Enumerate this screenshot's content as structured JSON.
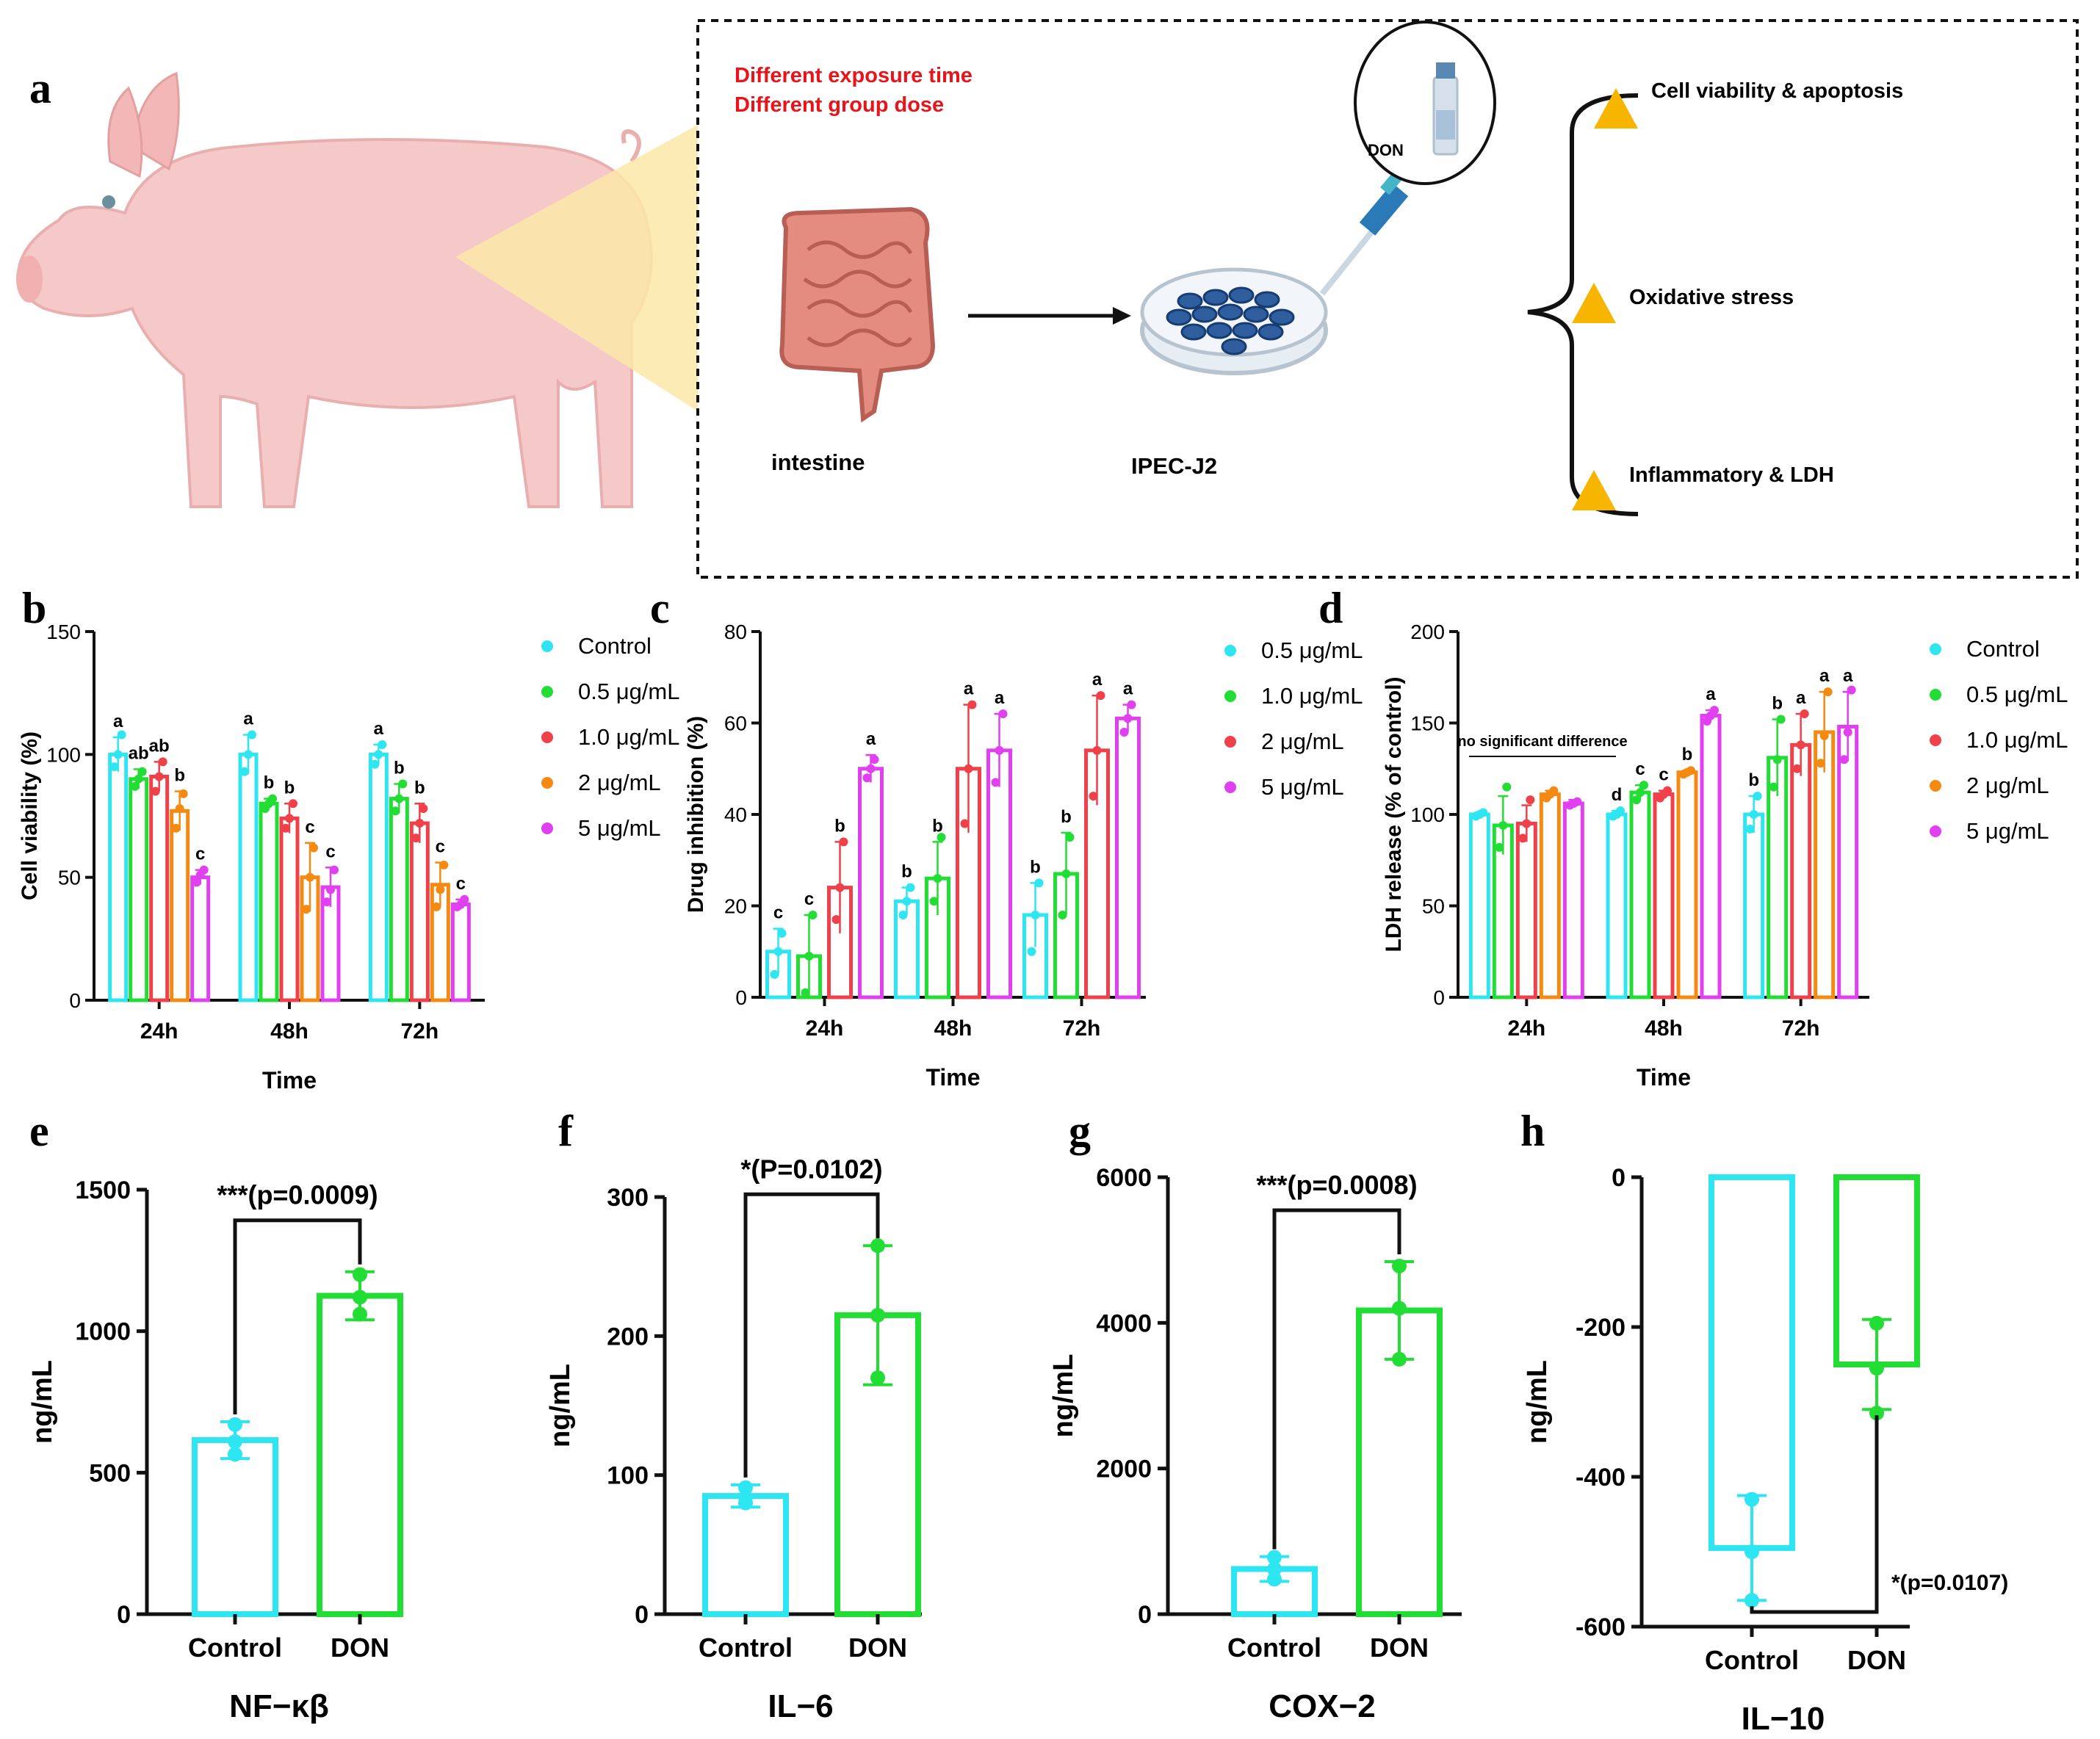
{
  "colors": {
    "control": "#2EE6F2",
    "d05": "#22DD33",
    "d10": "#F0404A",
    "d2": "#F58A12",
    "d5": "#E040F0",
    "don": "#22DD33",
    "red_text": "#E8141A",
    "triangle": "#F7B500",
    "pig": "#F6C9C9"
  },
  "panels": {
    "a": "a",
    "b": "b",
    "c": "c",
    "d": "d",
    "e": "e",
    "f": "f",
    "g": "g",
    "h": "h"
  },
  "schematic": {
    "note_line1": "Different exposure time",
    "note_line2": "Different group dose",
    "vial_label": "DON",
    "intestine_label": "intestine",
    "cell_label": "IPEC-J2",
    "outcomes": [
      "Cell viability & apoptosis",
      "Oxidative stress",
      "Inflammatory & LDH"
    ]
  },
  "chart_data": [
    {
      "id": "b",
      "type": "bar",
      "title": "",
      "xlabel": "Time",
      "ylabel": "Cell viability (%)",
      "categories": [
        "24h",
        "48h",
        "72h"
      ],
      "ylim": [
        0,
        150
      ],
      "yticks": [
        0,
        50,
        100,
        150
      ],
      "series": [
        {
          "name": "Control",
          "color": "control",
          "values": [
            100,
            100,
            100
          ],
          "err": [
            7,
            8,
            4
          ],
          "points": [
            [
              95,
              100,
              108
            ],
            [
              93,
              100,
              108
            ],
            [
              96,
              100,
              104
            ]
          ],
          "letters": [
            "a",
            "a",
            "a"
          ]
        },
        {
          "name": "0.5 μg/mL",
          "color": "d05",
          "values": [
            90,
            80,
            82
          ],
          "err": [
            4,
            2,
            6
          ],
          "points": [
            [
              87,
              90,
              93
            ],
            [
              78,
              80,
              82
            ],
            [
              77,
              82,
              88
            ]
          ],
          "letters": [
            "ab",
            "b",
            "b"
          ]
        },
        {
          "name": "1.0 μg/mL",
          "color": "d10",
          "values": [
            91,
            74,
            72
          ],
          "err": [
            6,
            6,
            8
          ],
          "points": [
            [
              85,
              91,
              97
            ],
            [
              70,
              74,
              80
            ],
            [
              66,
              72,
              78
            ]
          ],
          "letters": [
            "ab",
            "b",
            "b"
          ]
        },
        {
          "name": "2 μg/mL",
          "color": "d2",
          "values": [
            77,
            50,
            47
          ],
          "err": [
            8,
            14,
            9
          ],
          "points": [
            [
              70,
              78,
              84
            ],
            [
              37,
              50,
              62
            ],
            [
              38,
              45,
              55
            ]
          ],
          "letters": [
            "b",
            "c",
            "c"
          ]
        },
        {
          "name": "5 μg/mL",
          "color": "d5",
          "values": [
            50,
            46,
            39
          ],
          "err": [
            3,
            8,
            2
          ],
          "points": [
            [
              48,
              51,
              53
            ],
            [
              40,
              45,
              53
            ],
            [
              38,
              39,
              41
            ]
          ],
          "letters": [
            "c",
            "c",
            "c"
          ]
        }
      ]
    },
    {
      "id": "c",
      "type": "bar",
      "title": "",
      "xlabel": "Time",
      "ylabel": "Drug inhibition (%)",
      "categories": [
        "24h",
        "48h",
        "72h"
      ],
      "ylim": [
        0,
        80
      ],
      "yticks": [
        0,
        20,
        40,
        60,
        80
      ],
      "series": [
        {
          "name": "0.5 μg/mL",
          "color": "control",
          "values": [
            10,
            21,
            18
          ],
          "err": [
            5,
            3,
            7
          ],
          "points": [
            [
              5,
              10,
              14
            ],
            [
              18,
              21,
              24
            ],
            [
              10,
              18,
              25
            ]
          ],
          "letters": [
            "c",
            "b",
            "b"
          ]
        },
        {
          "name": "1.0 μg/mL",
          "color": "d05",
          "values": [
            9,
            26,
            27
          ],
          "err": [
            9,
            8,
            9
          ],
          "points": [
            [
              1,
              9,
              18
            ],
            [
              21,
              26,
              35
            ],
            [
              18,
              27,
              35
            ]
          ],
          "letters": [
            "c",
            "b",
            "b"
          ]
        },
        {
          "name": "2 μg/mL",
          "color": "d10",
          "values": [
            24,
            50,
            54
          ],
          "err": [
            10,
            14,
            12
          ],
          "points": [
            [
              17,
              24,
              34
            ],
            [
              38,
              50,
              64
            ],
            [
              44,
              54,
              66
            ]
          ],
          "letters": [
            "b",
            "a",
            "a"
          ]
        },
        {
          "name": "5 μg/mL",
          "color": "d5",
          "values": [
            50,
            54,
            61
          ],
          "err": [
            3,
            8,
            3
          ],
          "points": [
            [
              48,
              50,
              52
            ],
            [
              47,
              54,
              62
            ],
            [
              58,
              61,
              64
            ]
          ],
          "letters": [
            "a",
            "a",
            "a"
          ]
        }
      ]
    },
    {
      "id": "d",
      "type": "bar",
      "title": "",
      "xlabel": "Time",
      "ylabel": "LDH release (% of control)",
      "categories": [
        "24h",
        "48h",
        "72h"
      ],
      "ylim": [
        0,
        200
      ],
      "yticks": [
        0,
        50,
        100,
        150,
        200
      ],
      "annotation": "no significant difference",
      "series": [
        {
          "name": "Control",
          "color": "control",
          "values": [
            100,
            100,
            100
          ],
          "err": [
            1,
            2,
            10
          ],
          "points": [
            [
              99,
              100,
              101
            ],
            [
              99,
              100,
              102
            ],
            [
              92,
              100,
              110
            ]
          ],
          "letters": [
            "",
            "d",
            "b"
          ]
        },
        {
          "name": "0.5 μg/mL",
          "color": "d05",
          "values": [
            94,
            112,
            131
          ],
          "err": [
            16,
            4,
            21
          ],
          "points": [
            [
              82,
              94,
              115
            ],
            [
              108,
              112,
              116
            ],
            [
              115,
              130,
              152
            ]
          ],
          "letters": [
            "",
            "c",
            "b"
          ]
        },
        {
          "name": "1.0 μg/mL",
          "color": "d10",
          "values": [
            95,
            111,
            138
          ],
          "err": [
            10,
            2,
            17
          ],
          "points": [
            [
              87,
              95,
              108
            ],
            [
              109,
              111,
              113
            ],
            [
              125,
              138,
              155
            ]
          ],
          "letters": [
            "",
            "c",
            "a"
          ]
        },
        {
          "name": "2 μg/mL",
          "color": "d2",
          "values": [
            111,
            123,
            145
          ],
          "err": [
            2,
            1,
            22
          ],
          "points": [
            [
              109,
              111,
              113
            ],
            [
              122,
              123,
              124
            ],
            [
              128,
              143,
              167
            ]
          ],
          "letters": [
            "",
            "b",
            "a"
          ]
        },
        {
          "name": "5 μg/mL",
          "color": "d5",
          "values": [
            106,
            154,
            148
          ],
          "err": [
            2,
            3,
            19
          ],
          "points": [
            [
              105,
              106,
              107
            ],
            [
              151,
              154,
              157
            ],
            [
              130,
              145,
              168
            ]
          ],
          "letters": [
            "",
            "a",
            "a"
          ]
        }
      ]
    },
    {
      "id": "e",
      "type": "bar",
      "title": "NF−κβ",
      "xlabel": "",
      "ylabel": "ng/mL",
      "categories": [
        "Control",
        "DON"
      ],
      "ylim": [
        0,
        1500
      ],
      "yticks": [
        0,
        500,
        1000,
        1500
      ],
      "values": [
        615,
        1125
      ],
      "err": [
        65,
        85
      ],
      "points": [
        [
          565,
          610,
          670
        ],
        [
          1060,
          1120,
          1200
        ]
      ],
      "significance": "***(p=0.0009)",
      "bracket": "top"
    },
    {
      "id": "f",
      "type": "bar",
      "title": "IL−6",
      "xlabel": "",
      "ylabel": "ng/mL",
      "categories": [
        "Control",
        "DON"
      ],
      "ylim": [
        0,
        300
      ],
      "yticks": [
        0,
        100,
        200,
        300
      ],
      "values": [
        85,
        215
      ],
      "err": [
        8,
        50
      ],
      "points": [
        [
          80,
          84,
          91
        ],
        [
          170,
          215,
          265
        ]
      ],
      "significance": "*(P=0.0102)",
      "bracket": "top"
    },
    {
      "id": "g",
      "type": "bar",
      "title": "COX−2",
      "xlabel": "",
      "ylabel": "ng/mL",
      "categories": [
        "Control",
        "DON"
      ],
      "ylim": [
        0,
        6000
      ],
      "yticks": [
        0,
        2000,
        4000,
        6000
      ],
      "values": [
        620,
        4170
      ],
      "err": [
        170,
        670
      ],
      "points": [
        [
          480,
          620,
          780
        ],
        [
          3500,
          4200,
          4780
        ]
      ],
      "significance": "***(p=0.0008)",
      "bracket": "top"
    },
    {
      "id": "h",
      "type": "bar",
      "title": "IL−10",
      "xlabel": "",
      "ylabel": "ng/mL",
      "categories": [
        "Control",
        "DON"
      ],
      "ylim": [
        -600,
        0
      ],
      "yticks": [
        -600,
        -400,
        -200,
        0
      ],
      "values": [
        -495,
        -250
      ],
      "err": [
        70,
        60
      ],
      "points": [
        [
          -565,
          -500,
          -430
        ],
        [
          -315,
          -255,
          -195
        ]
      ],
      "significance": "*(p=0.0107)",
      "bracket": "bottom"
    }
  ]
}
